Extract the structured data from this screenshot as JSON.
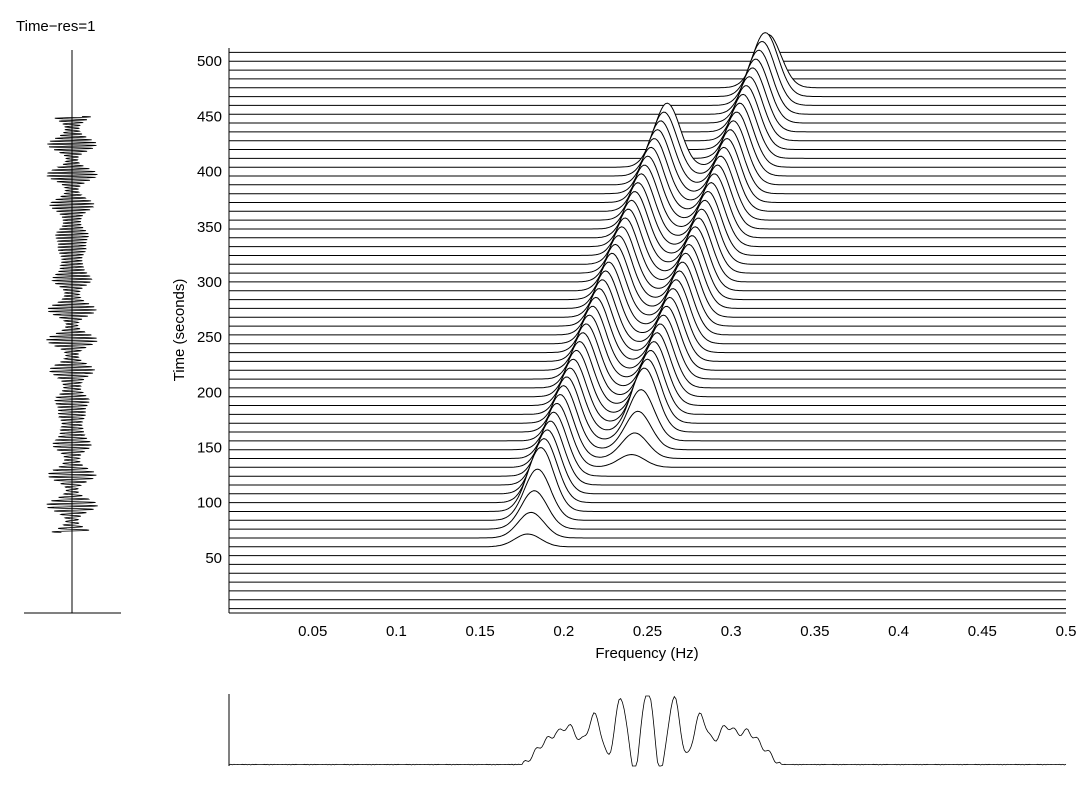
{
  "chart_data": [
    {
      "panel": "time-signal",
      "type": "line",
      "title": "Time−res=1",
      "orientation": "vertical",
      "description_values": {
        "time_range_seconds": [
          73,
          450
        ],
        "bursts_every_seconds": 25,
        "oscillation": "chirp"
      }
    },
    {
      "panel": "time-frequency-waterfall",
      "type": "line",
      "xlabel": "Frequency (Hz)",
      "ylabel": "Time (seconds)",
      "xlim": [
        0,
        0.5
      ],
      "ylim": [
        0,
        512
      ],
      "x_ticks": [
        "0.05",
        "0.1",
        "0.15",
        "0.2",
        "0.25",
        "0.3",
        "0.35",
        "0.4",
        "0.45",
        "0.5"
      ],
      "y_ticks": [
        "50",
        "100",
        "150",
        "200",
        "250",
        "300",
        "350",
        "400",
        "450",
        "500"
      ],
      "trace_spacing_seconds": 8,
      "trace_start_seconds": 4,
      "ridges": [
        {
          "name": "",
          "time_start": 58,
          "time_end": 405,
          "freq_start": 0.178,
          "freq_end": 0.262,
          "peak_amplitude_seconds": 58
        },
        {
          "name": "",
          "time_start": 130,
          "time_end": 475,
          "freq_start": 0.24,
          "freq_end": 0.322,
          "peak_amplitude_seconds": 58
        }
      ]
    },
    {
      "panel": "spectrum",
      "type": "line",
      "xlim": [
        0,
        0.5
      ],
      "description_values": {
        "band_hz": [
          0.175,
          0.33
        ],
        "comb_center_hz": 0.25,
        "comb_peaks": 8
      }
    }
  ]
}
